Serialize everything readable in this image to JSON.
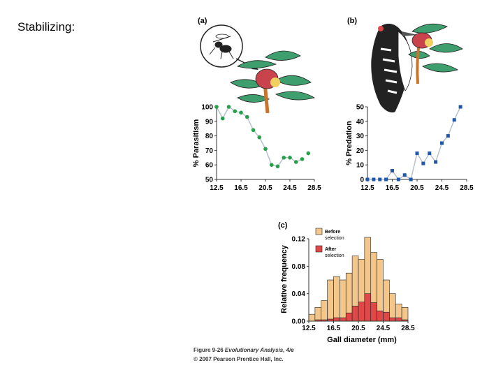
{
  "slide_title": "Stabilizing:",
  "caption": {
    "line1_prefix": "Figure 9-26 ",
    "line1_italic": "Evolutionary Analysis, 4/e",
    "line2": "© 2007 Pearson Prentice Hall, Inc."
  },
  "colors": {
    "line_gray": "#b9c2cc",
    "green": "#27a04a",
    "blue": "#1f58a8",
    "tan": "#f3c78c",
    "red": "#e04848",
    "outline": "#222222"
  },
  "chart_data": [
    {
      "panel": "(a)",
      "type": "line",
      "title": "",
      "ylabel": "% Parasitism",
      "xlabel": "",
      "xlim": [
        12.5,
        28.5
      ],
      "ylim": [
        50,
        100
      ],
      "xticks": [
        "12.5",
        "16.5",
        "20.5",
        "24.5",
        "28.5"
      ],
      "yticks": [
        "50",
        "60",
        "70",
        "80",
        "90",
        "100"
      ],
      "x": [
        12.5,
        13.5,
        14.5,
        15.5,
        16.5,
        17.5,
        18.5,
        19.5,
        20.5,
        21.5,
        22.5,
        23.5,
        24.5,
        25.5,
        26.5
      ],
      "y": [
        100,
        92,
        100,
        97,
        96,
        93,
        84,
        79,
        71,
        60,
        59,
        65,
        65,
        62,
        64
      ],
      "extra_point": {
        "x": 27.5,
        "y": 68
      }
    },
    {
      "panel": "(b)",
      "type": "line",
      "title": "",
      "ylabel": "% Predation",
      "xlabel": "",
      "xlim": [
        12.5,
        28.5
      ],
      "ylim": [
        0,
        50
      ],
      "xticks": [
        "12.5",
        "16.5",
        "20.5",
        "24.5",
        "28.5"
      ],
      "yticks": [
        "0",
        "10",
        "20",
        "30",
        "40",
        "50"
      ],
      "x": [
        12.5,
        13.5,
        14.5,
        15.5,
        16.5,
        17.5,
        18.5,
        19.5,
        20.5,
        21.5,
        22.5,
        23.5,
        24.5,
        25.5,
        26.5,
        27.5
      ],
      "y": [
        0,
        0,
        0,
        0,
        6,
        0,
        3,
        0,
        18,
        11,
        18,
        12,
        25,
        30,
        41,
        50
      ]
    },
    {
      "panel": "(c)",
      "type": "bar",
      "title": "",
      "xlabel": "Gall diameter (mm)",
      "ylabel": "Relative frequency",
      "xlim": [
        12.5,
        28.5
      ],
      "ylim": [
        0,
        0.12
      ],
      "xticks": [
        "12.5",
        "16.5",
        "20.5",
        "24.5",
        "28.5"
      ],
      "yticks": [
        "0.00",
        "0.04",
        "0.08",
        "0.12"
      ],
      "bin_centers": [
        13,
        14,
        15,
        16,
        17,
        18,
        19,
        20,
        21,
        22,
        23,
        24,
        25,
        26,
        27,
        28
      ],
      "series": [
        {
          "name": "Before selection",
          "values": [
            0.01,
            0.02,
            0.03,
            0.06,
            0.065,
            0.06,
            0.07,
            0.095,
            0.09,
            0.122,
            0.1,
            0.09,
            0.06,
            0.04,
            0.025,
            0.02
          ]
        },
        {
          "name": "After selection",
          "values": [
            0.0,
            0.002,
            0.002,
            0.003,
            0.005,
            0.005,
            0.012,
            0.022,
            0.028,
            0.04,
            0.027,
            0.015,
            0.013,
            0.005,
            0.005,
            0.002
          ]
        }
      ],
      "legend": [
        "Before selection",
        "After selection"
      ]
    }
  ]
}
